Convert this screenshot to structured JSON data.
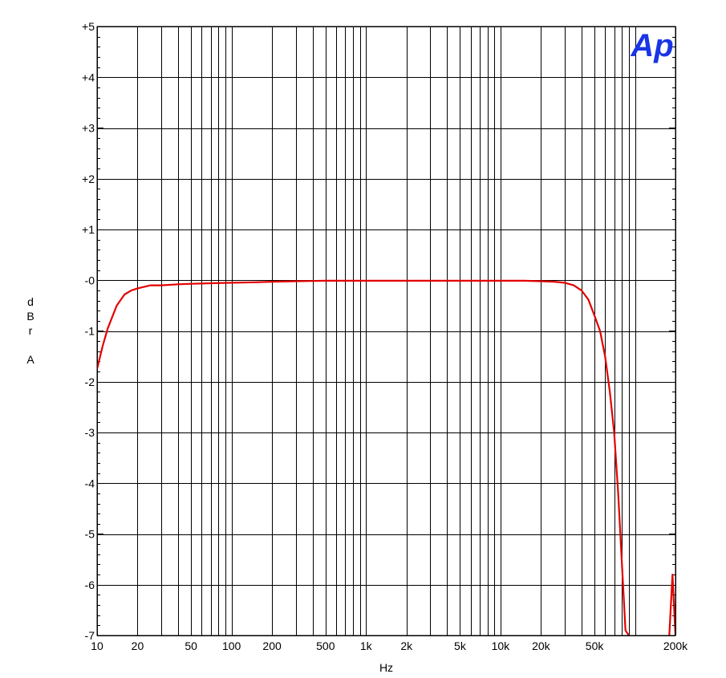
{
  "chart_data": {
    "type": "line",
    "title": "",
    "xlabel": "Hz",
    "ylabel": "dBr A",
    "ylabel_chars": [
      "d",
      "B",
      "r",
      "",
      "A"
    ],
    "x_scale": "log",
    "xlim": [
      10,
      200000
    ],
    "ylim": [
      -7,
      5
    ],
    "grid": true,
    "legend": "none",
    "x_ticks": [
      10,
      20,
      50,
      100,
      200,
      500,
      1000,
      2000,
      5000,
      10000,
      20000,
      50000,
      200000
    ],
    "x_tick_labels": [
      "10",
      "20",
      "50",
      "100",
      "200",
      "500",
      "1k",
      "2k",
      "5k",
      "10k",
      "20k",
      "50k",
      "200k"
    ],
    "y_ticks": [
      5,
      4,
      3,
      2,
      1,
      0,
      -1,
      -2,
      -3,
      -4,
      -5,
      -6,
      -7
    ],
    "y_tick_labels": [
      "+5",
      "+4",
      "+3",
      "+2",
      "+1",
      "-0",
      "-1",
      "-2",
      "-3",
      "-4",
      "-5",
      "-6",
      "-7"
    ],
    "series": [
      {
        "color": "#e30000",
        "x": [
          10,
          11,
          12,
          14,
          16,
          18,
          20,
          25,
          30,
          40,
          50,
          70,
          100,
          150,
          200,
          300,
          500,
          700,
          1000,
          1500,
          2000,
          3000,
          5000,
          7000,
          10000,
          15000,
          20000,
          25000,
          30000,
          35000,
          40000,
          45000,
          50000,
          55000,
          60000,
          65000,
          70000,
          75000,
          80000,
          85000,
          90000
        ],
        "y": [
          -1.75,
          -1.3,
          -0.95,
          -0.5,
          -0.28,
          -0.2,
          -0.16,
          -0.1,
          -0.1,
          -0.08,
          -0.07,
          -0.06,
          -0.05,
          -0.04,
          -0.03,
          -0.02,
          -0.01,
          -0.01,
          -0.01,
          -0.01,
          -0.01,
          -0.01,
          -0.01,
          -0.01,
          -0.01,
          -0.01,
          -0.02,
          -0.03,
          -0.05,
          -0.1,
          -0.2,
          -0.38,
          -0.7,
          -1.0,
          -1.5,
          -2.2,
          -3.0,
          -4.2,
          -5.6,
          -6.9,
          -7.0
        ]
      },
      {
        "color": "#e30000",
        "x": [
          180000,
          190000,
          200000
        ],
        "y": [
          -7.0,
          -5.8,
          -7.0
        ]
      }
    ]
  },
  "logo": {
    "text": "Ap",
    "color": "#1a35e6"
  }
}
